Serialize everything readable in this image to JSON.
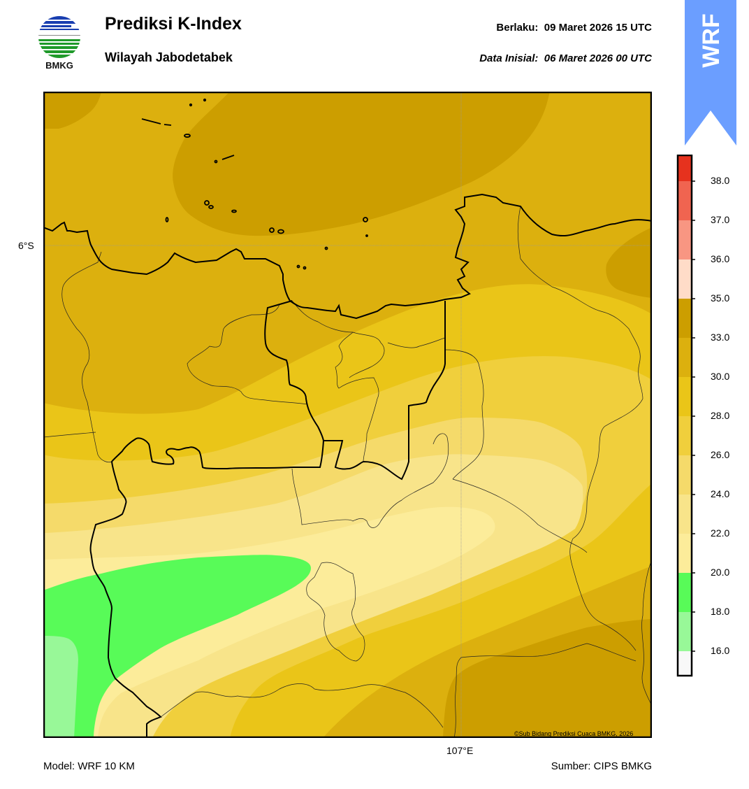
{
  "header": {
    "logo_text": "BMKG",
    "title": "Prediksi K-Index",
    "subtitle": "Wilayah Jabodetabek",
    "valid_label": "Berlaku:  09 Maret 2026 15 UTC",
    "init_label": "Data Inisial:  06 Maret 2026 00 UTC",
    "badge": "WRF",
    "badge_color": "#6b9eff"
  },
  "map": {
    "lat_label": "6°S",
    "lon_label": "107°E",
    "copyright": "©Sub Bidang Prediksi Cuaca BMKG, 2026",
    "field_colors": {
      "33-35": "#cc9e00",
      "30-33": "#dcb00e",
      "28-30": "#eac518",
      "26-28": "#f0cf3c",
      "24-26": "#f5da6a",
      "22-24": "#f8e48a",
      "20-22": "#fcec9a",
      "18-20": "#58fb58",
      "16-18": "#98f898"
    }
  },
  "colorbar": {
    "ticks": [
      "38.0",
      "37.0",
      "36.0",
      "35.0",
      "33.0",
      "30.0",
      "28.0",
      "26.0",
      "24.0",
      "22.0",
      "20.0",
      "18.0",
      "16.0"
    ],
    "colors": [
      "#e6321e",
      "#f06450",
      "#f89682",
      "#ffdcc8",
      "#cc9e00",
      "#dcb00e",
      "#eac518",
      "#f0cf3c",
      "#f5da6a",
      "#f8e48a",
      "#fcec9a",
      "#58fb58",
      "#98f898",
      "#f8f8f8"
    ]
  },
  "footer": {
    "model": "Model: WRF 10 KM",
    "source": "Sumber: CIPS BMKG"
  }
}
